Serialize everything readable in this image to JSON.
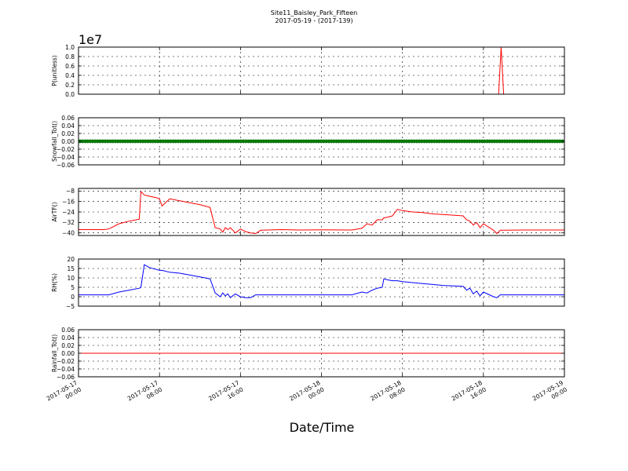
{
  "figure": {
    "title_line1": "Site11_Baisley_Park_Fifteen",
    "title_line2": "2017-05-19 - (2017-139)",
    "xlabel": "Date/Time"
  },
  "chart_data": {
    "type": "line",
    "x_range": [
      "2017-05-17 00:00",
      "2017-05-19 00:00"
    ],
    "x_ticks": [
      "2017-05-17 00:00",
      "2017-05-17 08:00",
      "2017-05-17 16:00",
      "2017-05-18 00:00",
      "2017-05-18 08:00",
      "2017-05-18 16:00",
      "2017-05-19 00:00"
    ],
    "x_tick_labels": [
      [
        "2017-05-17",
        "00:00"
      ],
      [
        "2017-05-17",
        "08:00"
      ],
      [
        "2017-05-17",
        "16:00"
      ],
      [
        "2017-05-18",
        "00:00"
      ],
      [
        "2017-05-18",
        "08:00"
      ],
      [
        "2017-05-18",
        "16:00"
      ],
      [
        "2017-05-19",
        "00:00"
      ]
    ],
    "xlabel": "Date/Time",
    "grid": true,
    "panels": [
      {
        "ylabel": "P(unitless)",
        "multiplier": "1e7",
        "ylim": [
          0,
          1.0
        ],
        "yticks": [
          0.0,
          0.2,
          0.4,
          0.6,
          0.8,
          1.0
        ],
        "ytick_labels": [
          "0.0",
          "0.2",
          "0.4",
          "0.6",
          "0.8",
          "1.0"
        ],
        "color": "#ff0000",
        "style": "line",
        "series": [
          {
            "x": [
              "2017-05-17 00:00",
              "2017-05-18 17:30",
              "2017-05-18 17:45",
              "2017-05-18 18:00",
              "2017-05-18 18:15",
              "2017-05-19 00:00"
            ],
            "y": [
              0,
              0,
              1.0,
              0,
              0,
              0
            ]
          }
        ]
      },
      {
        "ylabel": "Snowfall_Tot()",
        "ylim": [
          -0.06,
          0.06
        ],
        "yticks": [
          -0.06,
          -0.04,
          -0.02,
          0.0,
          0.02,
          0.04,
          0.06
        ],
        "ytick_labels": [
          "−0.06",
          "−0.04",
          "−0.02",
          "0.00",
          "0.02",
          "0.04",
          "0.06"
        ],
        "color": "#008000",
        "style": "markers",
        "series": [
          {
            "x": [
              "2017-05-17 00:00",
              "2017-05-19 00:00"
            ],
            "y": [
              0,
              0
            ]
          }
        ]
      },
      {
        "ylabel": "AirTF()",
        "ylim": [
          -42,
          -6
        ],
        "yticks": [
          -40,
          -32,
          -24,
          -16,
          -8
        ],
        "ytick_labels": [
          "−40",
          "−32",
          "−24",
          "−16",
          "−8"
        ],
        "color": "#ff0000",
        "style": "line",
        "series": [
          {
            "x": [
              "2017-05-17 00:00",
              "2017-05-17 02:30",
              "2017-05-17 03:00",
              "2017-05-17 04:00",
              "2017-05-17 05:00",
              "2017-05-17 06:00",
              "2017-05-17 06:10",
              "2017-05-17 06:30",
              "2017-05-17 07:00",
              "2017-05-17 07:40",
              "2017-05-17 08:00",
              "2017-05-17 08:15",
              "2017-05-17 09:00",
              "2017-05-17 10:00",
              "2017-05-17 11:00",
              "2017-05-17 12:00",
              "2017-05-17 12:30",
              "2017-05-17 13:00",
              "2017-05-17 13:30",
              "2017-05-17 14:00",
              "2017-05-17 14:15",
              "2017-05-17 14:30",
              "2017-05-17 14:45",
              "2017-05-17 15:00",
              "2017-05-17 15:30",
              "2017-05-17 16:00",
              "2017-05-17 16:30",
              "2017-05-17 17:00",
              "2017-05-17 17:30",
              "2017-05-17 18:00",
              "2017-05-17 20:00",
              "2017-05-17 22:00",
              "2017-05-18 00:00",
              "2017-05-18 03:00",
              "2017-05-18 04:00",
              "2017-05-18 04:30",
              "2017-05-18 05:00",
              "2017-05-18 05:30",
              "2017-05-18 06:00",
              "2017-05-18 06:10",
              "2017-05-18 06:30",
              "2017-05-18 07:00",
              "2017-05-18 07:30",
              "2017-05-18 08:00",
              "2017-05-18 09:00",
              "2017-05-18 10:00",
              "2017-05-18 11:00",
              "2017-05-18 12:00",
              "2017-05-18 14:00",
              "2017-05-18 14:20",
              "2017-05-18 14:40",
              "2017-05-18 15:00",
              "2017-05-18 15:20",
              "2017-05-18 15:40",
              "2017-05-18 16:00",
              "2017-05-18 17:00",
              "2017-05-18 17:20",
              "2017-05-18 17:40",
              "2017-05-18 18:00",
              "2017-05-18 20:00",
              "2017-05-19 00:00"
            ],
            "y": [
              -37.5,
              -37.5,
              -37,
              -33,
              -31,
              -29.5,
              -8.5,
              -11,
              -12,
              -13,
              -14,
              -19.5,
              -14,
              -15.5,
              -17,
              -18.5,
              -19.5,
              -20.5,
              -36,
              -37,
              -39.5,
              -36,
              -37.5,
              -36,
              -40,
              -37,
              -39,
              -40,
              -40.5,
              -38,
              -37.5,
              -37.8,
              -37.6,
              -37.8,
              -36.5,
              -33,
              -34,
              -30,
              -30,
              -28.5,
              -28,
              -27,
              -22,
              -23,
              -24,
              -24.5,
              -25.5,
              -26,
              -27,
              -30,
              -31,
              -34,
              -32,
              -36,
              -33,
              -38,
              -40.5,
              -38,
              -38,
              -37.8,
              -37.8
            ]
          }
        ]
      },
      {
        "ylabel": "RH(%)",
        "ylim": [
          -5,
          20
        ],
        "yticks": [
          -5,
          0,
          5,
          10,
          15,
          20
        ],
        "ytick_labels": [
          "−5",
          "0",
          "5",
          "10",
          "15",
          "20"
        ],
        "color": "#0000ff",
        "style": "line",
        "series": [
          {
            "x": [
              "2017-05-17 00:00",
              "2017-05-17 03:00",
              "2017-05-17 04:00",
              "2017-05-17 05:00",
              "2017-05-17 06:00",
              "2017-05-17 06:10",
              "2017-05-17 06:30",
              "2017-05-17 07:00",
              "2017-05-17 07:40",
              "2017-05-17 08:00",
              "2017-05-17 08:15",
              "2017-05-17 09:00",
              "2017-05-17 10:00",
              "2017-05-17 11:00",
              "2017-05-17 12:00",
              "2017-05-17 12:30",
              "2017-05-17 13:00",
              "2017-05-17 13:30",
              "2017-05-17 14:00",
              "2017-05-17 14:15",
              "2017-05-17 14:30",
              "2017-05-17 14:45",
              "2017-05-17 15:00",
              "2017-05-17 15:30",
              "2017-05-17 16:00",
              "2017-05-17 16:30",
              "2017-05-17 17:00",
              "2017-05-17 17:30",
              "2017-05-17 18:00",
              "2017-05-17 22:00",
              "2017-05-18 02:00",
              "2017-05-18 03:00",
              "2017-05-18 04:00",
              "2017-05-18 04:30",
              "2017-05-18 05:00",
              "2017-05-18 05:30",
              "2017-05-18 06:00",
              "2017-05-18 06:10",
              "2017-05-18 06:30",
              "2017-05-18 07:00",
              "2017-05-18 07:30",
              "2017-05-18 08:00",
              "2017-05-18 09:00",
              "2017-05-18 10:00",
              "2017-05-18 11:00",
              "2017-05-18 12:00",
              "2017-05-18 14:00",
              "2017-05-18 14:20",
              "2017-05-18 14:40",
              "2017-05-18 15:00",
              "2017-05-18 15:20",
              "2017-05-18 15:40",
              "2017-05-18 16:00",
              "2017-05-18 17:00",
              "2017-05-18 17:20",
              "2017-05-18 17:40",
              "2017-05-18 18:00",
              "2017-05-18 20:00",
              "2017-05-19 00:00"
            ],
            "y": [
              1,
              1,
              2.5,
              3.5,
              4.5,
              5,
              17,
              15.5,
              14.5,
              14,
              14,
              13,
              12.5,
              11.5,
              10.5,
              10,
              9.5,
              2,
              0,
              2,
              0.5,
              1.5,
              -0.5,
              1.5,
              0,
              -0.5,
              -0.5,
              1,
              1,
              1,
              1,
              1,
              2.5,
              2,
              3.5,
              4.5,
              5,
              9.5,
              9,
              8.5,
              8.5,
              8,
              7.5,
              7,
              6.5,
              6,
              5.5,
              3.5,
              4.5,
              1.5,
              3,
              0.5,
              2.5,
              0,
              -0.5,
              1,
              1,
              1,
              1
            ]
          }
        ]
      },
      {
        "ylabel": "Rainfall_Tot()",
        "ylim": [
          -0.06,
          0.06
        ],
        "yticks": [
          -0.06,
          -0.04,
          -0.02,
          0.0,
          0.02,
          0.04,
          0.06
        ],
        "ytick_labels": [
          "−0.06",
          "−0.04",
          "−0.02",
          "0.00",
          "0.02",
          "0.04",
          "0.06"
        ],
        "color": "#ff0000",
        "style": "line",
        "series": [
          {
            "x": [
              "2017-05-17 00:00",
              "2017-05-19 00:00"
            ],
            "y": [
              0,
              0
            ]
          }
        ]
      }
    ]
  }
}
